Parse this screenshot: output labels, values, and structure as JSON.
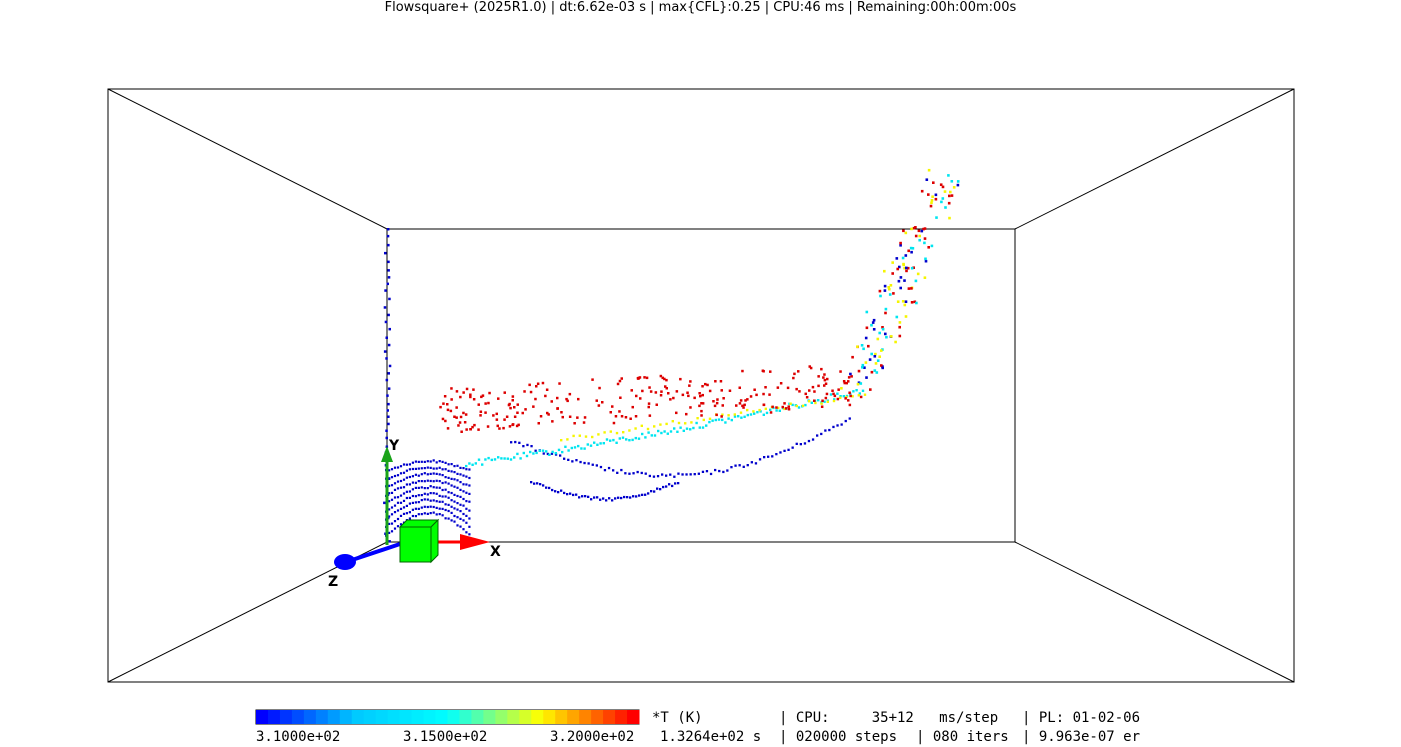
{
  "window": {
    "title": "Flowsquare+ (2025R1.0) | dt:6.62e-03 s | max{CFL}:0.25 | CPU:46 ms | Remaining:00h:00m:00s"
  },
  "axes": {
    "x_label": "X",
    "y_label": "Y",
    "z_label": "Z",
    "colors": {
      "x": "#ff0000",
      "y": "#1aa31a",
      "z": "#0000ff",
      "box": "#00ff00"
    }
  },
  "colorbar": {
    "variable": "*T (K)",
    "colors": [
      "#0000ff",
      "#00c8ff",
      "#00ffff",
      "#ffff00",
      "#ff0000"
    ],
    "ticks": [
      "3.1000e+02",
      "3.1500e+02",
      "3.2000e+02"
    ],
    "range": [
      310,
      320
    ]
  },
  "status": {
    "cpu": "| CPU:     35+12   ms/step",
    "pl": "| PL: 01-02-06",
    "time": "1.3264e+02 s",
    "steps": "| 020000 steps",
    "iters": "| 080 iters",
    "error": "| 9.963e-07 er"
  },
  "particles": {
    "colors": {
      "blue": "#0000cc",
      "cyan": "#00e5f0",
      "yellow": "#f5f500",
      "red": "#dd0000"
    }
  }
}
